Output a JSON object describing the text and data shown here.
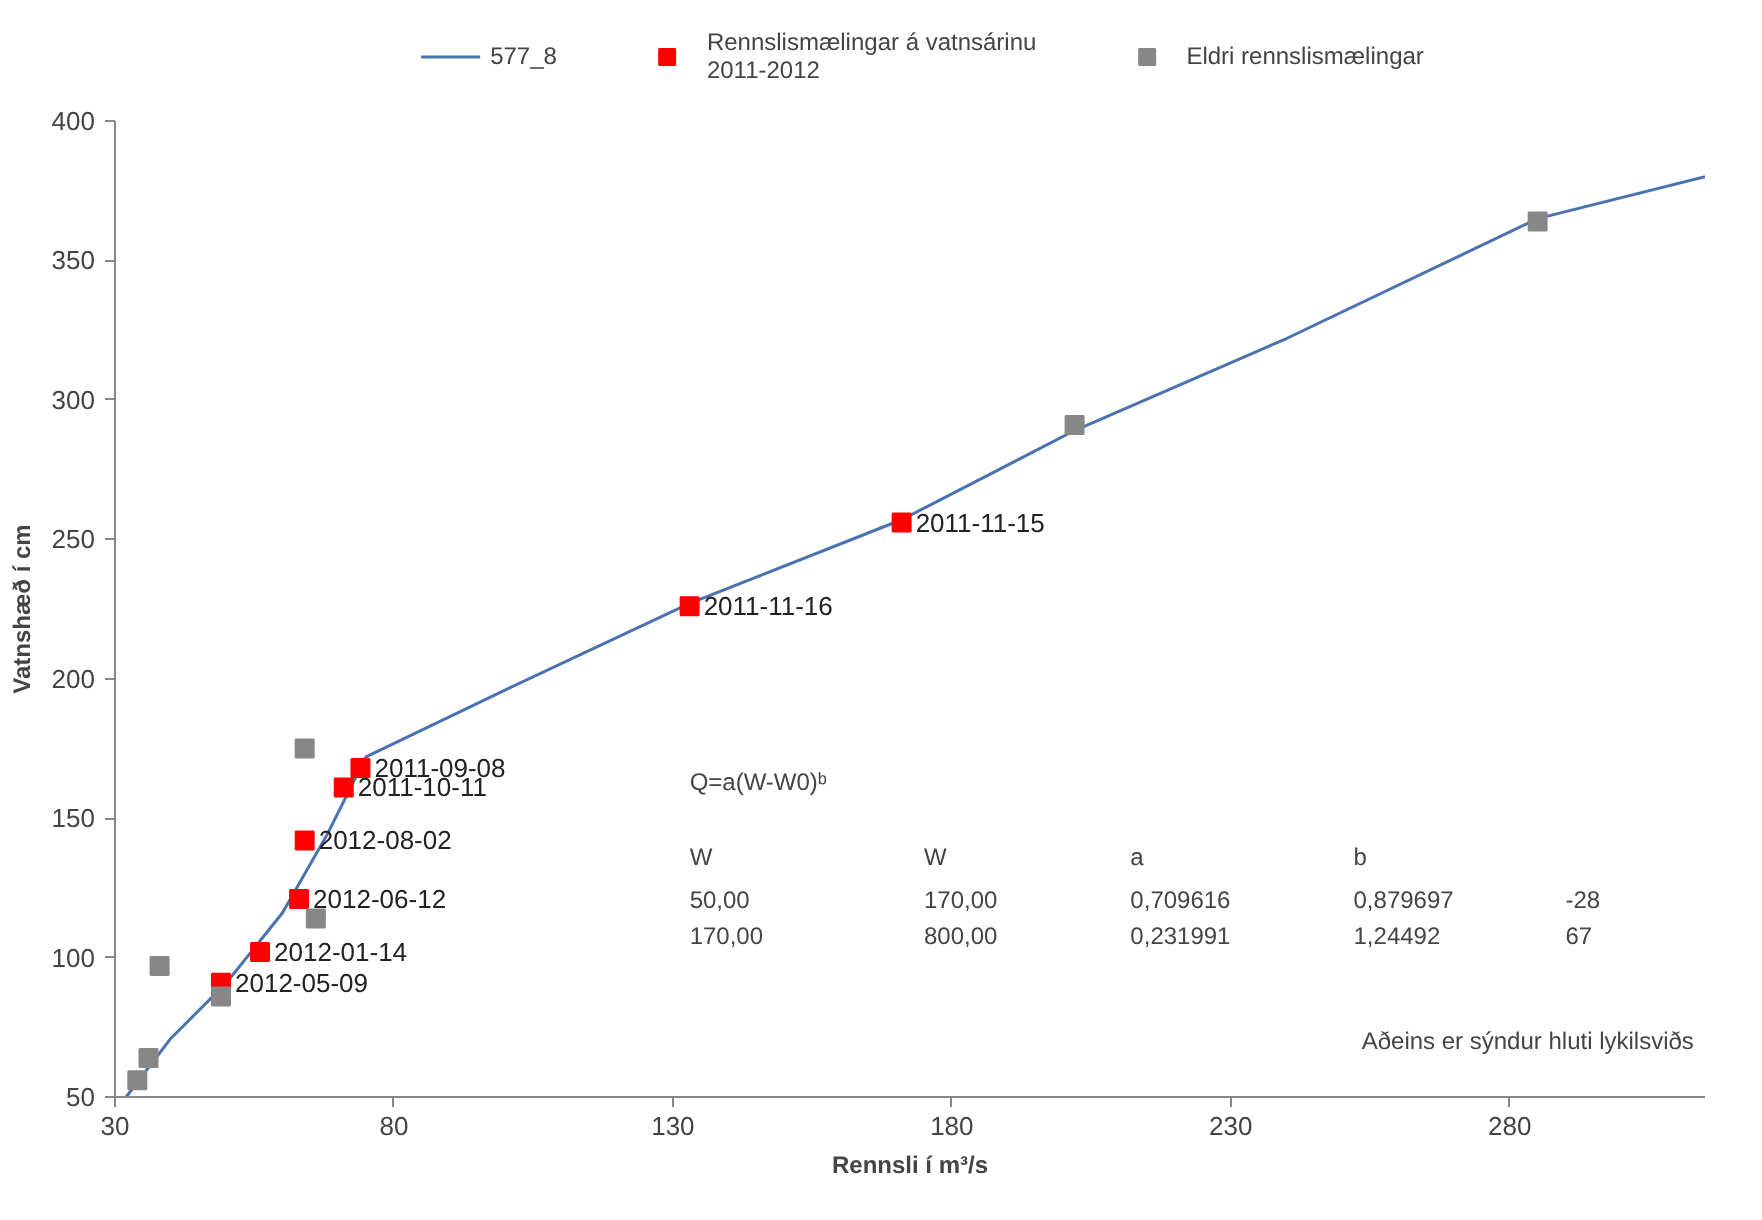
{
  "chart_data": {
    "type": "scatter",
    "xlabel": "Rennsli í m³/s",
    "ylabel": "Vatnshæð í cm",
    "xlim": [
      30,
      315
    ],
    "xticks": [
      30,
      80,
      130,
      180,
      230,
      280
    ],
    "ylim": [
      50,
      400
    ],
    "yticks": [
      50,
      100,
      150,
      200,
      250,
      300,
      350,
      400
    ],
    "grid": false,
    "legend": "top",
    "series": [
      {
        "name": "577_8",
        "type": "line",
        "color": "#4a72b0",
        "line_style": "solid",
        "x": [
          32,
          40,
          50,
          60,
          68,
          75,
          100,
          133,
          171,
          202,
          240,
          285,
          315
        ],
        "values": [
          50,
          71,
          91,
          116,
          144,
          172,
          196,
          227,
          257,
          289,
          322,
          365,
          380
        ]
      },
      {
        "name": "Rennslismælingar á vatnsárinu\n2011-2012",
        "marker": "square",
        "color": "#ff0000",
        "x": [
          74,
          71,
          64,
          63,
          56,
          49,
          133,
          171
        ],
        "values": [
          168,
          161,
          142,
          121,
          102,
          91,
          226,
          256
        ],
        "value_labels": [
          "2011-09-08",
          "2011-10-11",
          "2012-08-02",
          "2012-06-12",
          "2012-01-14",
          "2012-05-09",
          "2011-11-16",
          "2011-11-15"
        ]
      },
      {
        "name": "Eldri rennslismælingar",
        "marker": "square",
        "color": "#878787",
        "x": [
          64,
          66,
          38,
          49,
          36,
          34,
          202,
          285
        ],
        "values": [
          175,
          114,
          97,
          86,
          64,
          56,
          291,
          364
        ]
      }
    ],
    "annotations": [
      "Q=a(W-W0)ᵇ",
      "W\tW\ta\tb",
      "50,00\t170,00\t0,709616\t0,879697\t-28",
      "170,00\t800,00\t0,231991\t1,24492\t67",
      "Aðeins er sýndur hluti lykilsviðs"
    ]
  }
}
